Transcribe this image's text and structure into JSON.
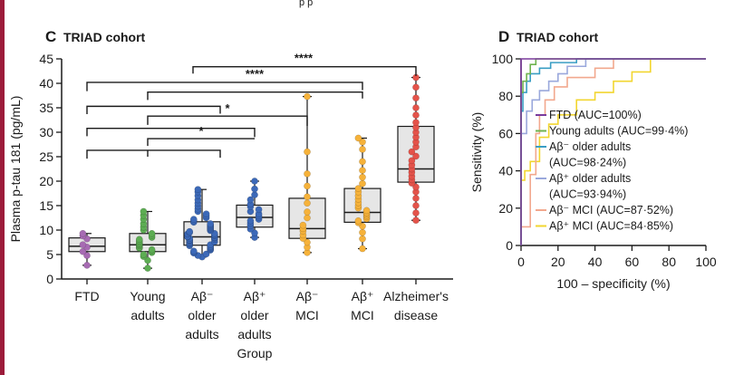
{
  "page_top_text": "p                                    p",
  "chart_data": [
    {
      "panel": "C",
      "title": "TRIAD cohort",
      "type": "box",
      "ylabel": "Plasma p-tau 181 (pg/mL)",
      "xlabel": "Group",
      "ylim": [
        0,
        45
      ],
      "yticks": [
        0,
        5,
        10,
        15,
        20,
        25,
        30,
        35,
        40,
        45
      ],
      "groups": [
        {
          "label_lines": [
            "FTD"
          ],
          "color": "#a76bb3",
          "min": 2.8,
          "q1": 5.6,
          "median": 6.7,
          "q3": 8.4,
          "max": 9.3,
          "points": [
            2.8,
            4.8,
            5.6,
            6.5,
            7.0,
            8.2,
            8.8,
            9.3
          ]
        },
        {
          "label_lines": [
            "Young",
            "adults"
          ],
          "color": "#5dad53",
          "min": 2.2,
          "q1": 5.6,
          "median": 7.0,
          "q3": 9.3,
          "max": 13.8,
          "points": [
            2.2,
            3.8,
            4.6,
            5.0,
            5.4,
            5.7,
            6.0,
            6.3,
            6.5,
            6.8,
            7.0,
            7.2,
            7.5,
            7.8,
            8.1,
            8.5,
            8.9,
            9.3,
            10.0,
            10.6,
            11.3,
            12.2,
            13.0,
            13.8
          ]
        },
        {
          "label_lines": [
            "Aβ⁻",
            "older",
            "adults"
          ],
          "color": "#3c69b8",
          "min": 4.5,
          "q1": 6.9,
          "median": 8.6,
          "q3": 11.7,
          "max": 18.3,
          "points": [
            4.5,
            4.8,
            5.1,
            5.3,
            5.5,
            5.7,
            5.9,
            6.1,
            6.3,
            6.5,
            6.7,
            6.8,
            7.0,
            7.1,
            7.3,
            7.4,
            7.6,
            7.7,
            7.9,
            8.0,
            8.1,
            8.3,
            8.4,
            8.5,
            8.6,
            8.7,
            8.9,
            9.0,
            9.2,
            9.3,
            9.5,
            9.7,
            9.9,
            10.1,
            10.3,
            10.5,
            10.7,
            10.9,
            11.1,
            11.3,
            11.6,
            11.9,
            12.2,
            12.5,
            12.9,
            13.3,
            13.8,
            14.3,
            14.9,
            15.5,
            16.2,
            17.0,
            17.8,
            18.3
          ]
        },
        {
          "label_lines": [
            "Aβ⁺",
            "older",
            "adults"
          ],
          "color": "#3c69b8",
          "min": 8.5,
          "q1": 10.6,
          "median": 12.6,
          "q3": 15.1,
          "max": 20.0,
          "points": [
            8.5,
            9.4,
            10.2,
            10.9,
            11.4,
            11.9,
            12.2,
            12.6,
            12.9,
            13.3,
            13.8,
            14.2,
            14.8,
            15.3,
            16.2,
            17.2,
            18.4,
            20.0
          ]
        },
        {
          "label_lines": [
            "Aβ⁻",
            "MCI"
          ],
          "color": "#f6b23a",
          "min": 5.4,
          "q1": 8.3,
          "median": 10.3,
          "q3": 16.5,
          "max": 37.3,
          "points": [
            5.4,
            6.5,
            7.5,
            8.3,
            9.0,
            9.8,
            10.3,
            11.0,
            12.5,
            13.7,
            15.5,
            16.8,
            19.0,
            21.5,
            26.0,
            37.3
          ]
        },
        {
          "label_lines": [
            "Aβ⁺",
            "MCI"
          ],
          "color": "#f6b23a",
          "min": 6.2,
          "q1": 11.6,
          "median": 13.6,
          "q3": 18.5,
          "max": 28.8,
          "points": [
            6.2,
            8.2,
            9.5,
            10.8,
            11.5,
            11.9,
            12.3,
            12.7,
            13.0,
            13.3,
            13.6,
            14.0,
            14.5,
            15.0,
            15.6,
            16.3,
            17.0,
            17.8,
            18.5,
            19.5,
            20.8,
            22.2,
            24.0,
            26.5,
            28.0,
            28.8
          ]
        },
        {
          "label_lines": [
            "Alzheimer's",
            "disease"
          ],
          "color": "#e4534a",
          "min": 12.0,
          "q1": 19.8,
          "median": 22.5,
          "q3": 31.2,
          "max": 41.2,
          "points": [
            12.0,
            13.5,
            15.0,
            16.5,
            17.8,
            18.8,
            19.6,
            20.3,
            21.0,
            21.8,
            22.5,
            23.3,
            24.2,
            25.1,
            26.0,
            27.0,
            28.0,
            29.0,
            30.0,
            31.0,
            32.0,
            33.5,
            35.0,
            37.0,
            39.2,
            41.2
          ]
        }
      ],
      "comparisons": [
        {
          "from": 1,
          "to": 7,
          "label": "****"
        },
        {
          "from": 1,
          "to": 6,
          "label": "****"
        },
        {
          "from": 3,
          "to": 6,
          "label": "****"
        },
        {
          "from": 1,
          "to": 3,
          "label": ""
        },
        {
          "from": 3,
          "to": 5,
          "label": "*"
        },
        {
          "from": 1,
          "to": 3,
          "label": ""
        },
        {
          "from": 3,
          "to": 4,
          "label": "*"
        },
        {
          "from": 1,
          "to": 3,
          "label": ""
        }
      ]
    },
    {
      "panel": "D",
      "title": "TRIAD cohort",
      "type": "line",
      "xlabel": "100 – specificity  (%)",
      "ylabel": "Sensitivity (%)",
      "xlim": [
        0,
        100
      ],
      "ylim": [
        0,
        100
      ],
      "xticks": [
        0,
        20,
        40,
        60,
        80,
        100
      ],
      "yticks": [
        0,
        20,
        40,
        60,
        80,
        100
      ],
      "series": [
        {
          "name": "FTD (AUC=100%)",
          "color": "#7a3a9c",
          "x": [
            0,
            0,
            100
          ],
          "y": [
            0,
            100,
            100
          ]
        },
        {
          "name": "Young adults (AUC=99·4%)",
          "color": "#6fb34f",
          "x": [
            0,
            0,
            1,
            1,
            3,
            3,
            5,
            5,
            8,
            8,
            100
          ],
          "y": [
            0,
            82,
            82,
            88,
            88,
            92,
            92,
            97,
            97,
            100,
            100
          ]
        },
        {
          "name": "Aβ⁻ older adults",
          "name_line2": "(AUC=98·24%)",
          "color": "#3a9ec4",
          "x": [
            0,
            0,
            1,
            1,
            3,
            3,
            5,
            5,
            10,
            10,
            16,
            16,
            30,
            30,
            100
          ],
          "y": [
            0,
            72,
            72,
            82,
            82,
            88,
            88,
            92,
            92,
            95,
            95,
            98,
            98,
            100,
            100
          ]
        },
        {
          "name": "Aβ⁺ older adults",
          "name_line2": "(AUC=93·94%)",
          "color": "#9aa8dc",
          "x": [
            0,
            0,
            3,
            3,
            6,
            6,
            10,
            10,
            15,
            15,
            20,
            20,
            25,
            25,
            35,
            35,
            100
          ],
          "y": [
            0,
            60,
            60,
            72,
            72,
            78,
            78,
            83,
            83,
            88,
            88,
            92,
            92,
            96,
            96,
            100,
            100
          ]
        },
        {
          "name": "Aβ⁻ MCI (AUC=87·52%)",
          "color": "#f2a88e",
          "x": [
            0,
            0,
            5,
            5,
            8,
            8,
            10,
            10,
            13,
            13,
            18,
            18,
            25,
            25,
            40,
            40,
            50,
            50,
            100
          ],
          "y": [
            0,
            10,
            10,
            38,
            38,
            60,
            60,
            70,
            70,
            78,
            78,
            85,
            85,
            90,
            90,
            95,
            95,
            100,
            100
          ]
        },
        {
          "name": "Aβ⁺ MCI (AUC=84·85%)",
          "color": "#f2d630",
          "x": [
            0,
            0,
            2,
            2,
            5,
            5,
            10,
            10,
            15,
            15,
            20,
            20,
            30,
            30,
            40,
            40,
            50,
            50,
            60,
            60,
            70,
            70,
            100
          ],
          "y": [
            0,
            35,
            35,
            40,
            40,
            45,
            45,
            58,
            58,
            65,
            65,
            70,
            70,
            78,
            78,
            82,
            82,
            88,
            88,
            93,
            93,
            100,
            100
          ]
        }
      ],
      "legend_position": "bottom-right"
    }
  ]
}
